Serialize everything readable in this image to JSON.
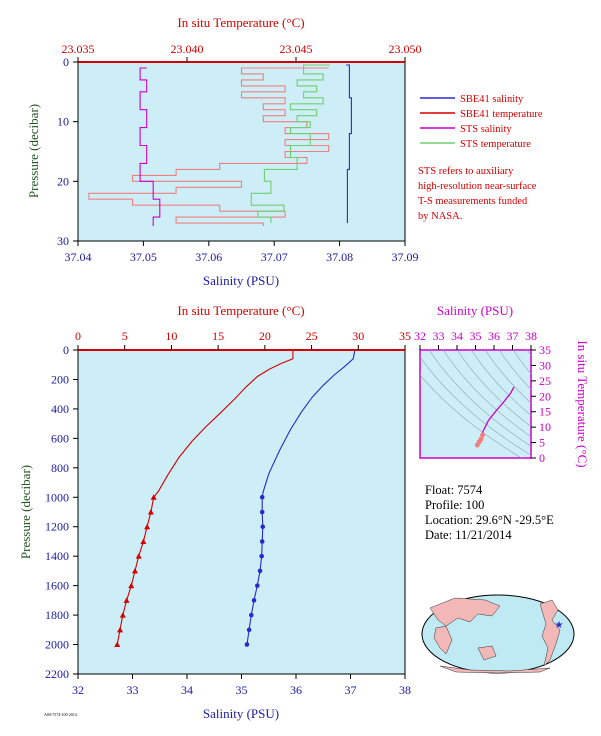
{
  "colors": {
    "plot_bg": "#cdeef6",
    "red": "#d40000",
    "blue": "#1a1aa6",
    "magenta": "#cc00cc",
    "green_axis": "#225522",
    "sts_temp": "#f08080",
    "sts_sal": "#6fcf6f",
    "sts_mag": "#cc00cc",
    "sbe_sal": "#2a2acc",
    "land": "#bfeaf4"
  },
  "legend": {
    "sbe41_salinity": "SBE41 salinity",
    "sbe41_temperature": "SBE41 temperature",
    "sts_salinity": "STS salinity",
    "sts_temperature": "STS temperature",
    "note_line1": "STS refers to auxiliary",
    "note_line2": "high-resolution near-surface",
    "note_line3": "T-S measurements funded",
    "note_line4": "by NASA."
  },
  "float_info": {
    "float": "Float:  7574",
    "profile": "Profile:  100",
    "location": "Location:  29.6°N  -29.5°E",
    "date": "Date:  11/21/2014"
  },
  "footer_code": "A00-7574-100-2014",
  "chart_data": [
    {
      "type": "line",
      "title": "",
      "top_xlabel": "In situ Temperature (°C)",
      "bottom_xlabel": "Salinity (PSU)",
      "ylabel": "Pressure (decibar)",
      "temp_range": [
        23.035,
        23.05
      ],
      "temp_ticks": [
        "23.035",
        "23.040",
        "23.045",
        "23.050"
      ],
      "sal_range": [
        37.04,
        37.09
      ],
      "sal_ticks": [
        "37.04",
        "37.05",
        "37.06",
        "37.07",
        "37.08",
        "37.09"
      ],
      "pressure_range": [
        0,
        30
      ],
      "pressure_ticks": [
        "0",
        "10",
        "20",
        "30"
      ],
      "series": [
        {
          "name": "STS temperature",
          "x_units": "temperature",
          "points": [
            [
              23.0465,
              1
            ],
            [
              23.0425,
              2
            ],
            [
              23.0435,
              3
            ],
            [
              23.0425,
              4
            ],
            [
              23.0445,
              5
            ],
            [
              23.0425,
              6
            ],
            [
              23.0445,
              7
            ],
            [
              23.0435,
              8
            ],
            [
              23.0445,
              9
            ],
            [
              23.0435,
              10
            ],
            [
              23.0455,
              11
            ],
            [
              23.0445,
              12
            ],
            [
              23.0465,
              13
            ],
            [
              23.0445,
              14
            ],
            [
              23.0465,
              15
            ],
            [
              23.0445,
              16
            ],
            [
              23.0455,
              17
            ],
            [
              23.0415,
              18
            ],
            [
              23.0395,
              19
            ],
            [
              23.0375,
              20
            ],
            [
              23.0425,
              21
            ],
            [
              23.0395,
              22
            ],
            [
              23.0355,
              23
            ],
            [
              23.0375,
              24
            ],
            [
              23.0415,
              25
            ],
            [
              23.0445,
              26
            ],
            [
              23.0395,
              27
            ],
            [
              23.0435,
              27.5
            ]
          ]
        },
        {
          "name": "STS salinity",
          "x_units": "salinity",
          "points": [
            [
              37.0785,
              0.5
            ],
            [
              37.0745,
              2
            ],
            [
              37.0775,
              3
            ],
            [
              37.0735,
              4
            ],
            [
              37.0765,
              5
            ],
            [
              37.0745,
              6
            ],
            [
              37.0775,
              7
            ],
            [
              37.0725,
              8
            ],
            [
              37.0765,
              9
            ],
            [
              37.0735,
              10
            ],
            [
              37.0755,
              11
            ],
            [
              37.0725,
              12
            ],
            [
              37.0755,
              14
            ],
            [
              37.0725,
              16
            ],
            [
              37.0735,
              18
            ],
            [
              37.0685,
              20
            ],
            [
              37.0695,
              22
            ],
            [
              37.0665,
              24
            ],
            [
              37.0715,
              25
            ],
            [
              37.0675,
              26
            ],
            [
              37.0695,
              27
            ]
          ]
        },
        {
          "name": "STS salinity (magenta)",
          "x_units": "salinity",
          "points": [
            [
              37.0505,
              1
            ],
            [
              37.0495,
              3
            ],
            [
              37.0505,
              5
            ],
            [
              37.0495,
              8
            ],
            [
              37.0505,
              11
            ],
            [
              37.0495,
              14
            ],
            [
              37.0505,
              17
            ],
            [
              37.0495,
              20
            ],
            [
              37.0515,
              23
            ],
            [
              37.0525,
              26
            ],
            [
              37.0515,
              27.5
            ]
          ]
        },
        {
          "name": "SBE41 salinity",
          "x_units": "salinity",
          "points": [
            [
              37.081,
              0.5
            ],
            [
              37.0815,
              6
            ],
            [
              37.0818,
              12
            ],
            [
              37.0815,
              18
            ],
            [
              37.0812,
              27
            ]
          ]
        }
      ]
    },
    {
      "type": "line",
      "title": "",
      "top_xlabel": "In situ Temperature (°C)",
      "bottom_xlabel": "Salinity (PSU)",
      "ylabel": "Pressure (decibar)",
      "temp_range": [
        0,
        35
      ],
      "temp_ticks": [
        "0",
        "5",
        "10",
        "15",
        "20",
        "25",
        "30",
        "35"
      ],
      "sal_range": [
        32,
        38
      ],
      "sal_ticks": [
        "32",
        "33",
        "34",
        "35",
        "36",
        "37",
        "38"
      ],
      "pressure_range": [
        0,
        2200
      ],
      "pressure_ticks": [
        "0",
        "200",
        "400",
        "600",
        "800",
        "1000",
        "1200",
        "1400",
        "1600",
        "1800",
        "2000",
        "2200"
      ],
      "series": [
        {
          "name": "SBE41 temperature",
          "x_units": "temperature",
          "points": [
            [
              23.0,
              0
            ],
            [
              23.0,
              60
            ],
            [
              21.8,
              90
            ],
            [
              20.5,
              130
            ],
            [
              19.2,
              180
            ],
            [
              18.0,
              250
            ],
            [
              16.8,
              330
            ],
            [
              15.2,
              430
            ],
            [
              13.7,
              520
            ],
            [
              12.2,
              620
            ],
            [
              10.8,
              730
            ],
            [
              9.6,
              850
            ],
            [
              8.6,
              960
            ],
            [
              8.1,
              1000
            ],
            [
              7.8,
              1100
            ],
            [
              7.4,
              1200
            ],
            [
              7.0,
              1300
            ],
            [
              6.5,
              1400
            ],
            [
              6.1,
              1500
            ],
            [
              5.7,
              1600
            ],
            [
              5.2,
              1700
            ],
            [
              4.8,
              1800
            ],
            [
              4.5,
              1900
            ],
            [
              4.2,
              2000
            ]
          ]
        },
        {
          "name": "SBE41 salinity",
          "x_units": "salinity",
          "points": [
            [
              37.08,
              0
            ],
            [
              37.05,
              60
            ],
            [
              36.9,
              110
            ],
            [
              36.7,
              170
            ],
            [
              36.5,
              240
            ],
            [
              36.3,
              320
            ],
            [
              36.1,
              420
            ],
            [
              35.9,
              540
            ],
            [
              35.7,
              680
            ],
            [
              35.5,
              840
            ],
            [
              35.4,
              960
            ],
            [
              35.38,
              1000
            ],
            [
              35.38,
              1100
            ],
            [
              35.39,
              1200
            ],
            [
              35.38,
              1300
            ],
            [
              35.37,
              1400
            ],
            [
              35.34,
              1500
            ],
            [
              35.29,
              1600
            ],
            [
              35.23,
              1700
            ],
            [
              35.18,
              1800
            ],
            [
              35.14,
              1900
            ],
            [
              35.1,
              2000
            ]
          ]
        }
      ]
    },
    {
      "type": "scatter",
      "title": "",
      "top_xlabel": "Salinity (PSU)",
      "right_ylabel": "In situ Temperature (°C)",
      "sal_range": [
        32,
        38
      ],
      "sal_ticks": [
        "32",
        "33",
        "34",
        "35",
        "36",
        "37",
        "38"
      ],
      "temp_range": [
        0,
        35
      ],
      "temp_ticks": [
        "0",
        "5",
        "10",
        "15",
        "20",
        "25",
        "30",
        "35"
      ],
      "series": [
        {
          "name": "T-S curve",
          "points": [
            [
              35.1,
              4.2
            ],
            [
              35.2,
              5.2
            ],
            [
              35.3,
              6.1
            ],
            [
              35.38,
              7.4
            ],
            [
              35.4,
              8.6
            ],
            [
              35.7,
              12.2
            ],
            [
              36.1,
              15.2
            ],
            [
              36.5,
              18.0
            ],
            [
              36.9,
              21.0
            ],
            [
              37.08,
              23.0
            ]
          ]
        }
      ]
    }
  ]
}
